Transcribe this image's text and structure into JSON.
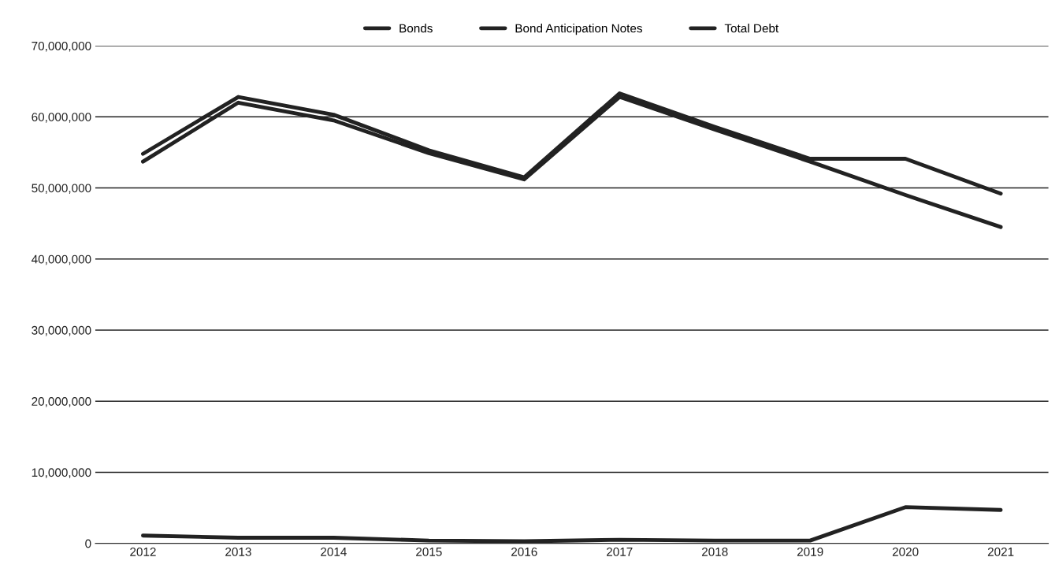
{
  "chart_data": {
    "type": "line",
    "categories": [
      "2012",
      "2013",
      "2014",
      "2015",
      "2016",
      "2017",
      "2018",
      "2019",
      "2020",
      "2021"
    ],
    "series": [
      {
        "name": "Bonds",
        "color": "#222222",
        "values": [
          53700000,
          62000000,
          59500000,
          54900000,
          51200000,
          62800000,
          58200000,
          53700000,
          49000000,
          44500000
        ]
      },
      {
        "name": "Bond Anticipation Notes",
        "color": "#222222",
        "values": [
          1100000,
          800000,
          800000,
          400000,
          300000,
          500000,
          400000,
          400000,
          5100000,
          4700000
        ]
      },
      {
        "name": "Total Debt",
        "color": "#222222",
        "values": [
          54800000,
          62800000,
          60300000,
          55300000,
          51500000,
          63300000,
          58600000,
          54100000,
          54100000,
          49200000
        ]
      }
    ],
    "ylim": [
      0,
      70000000
    ],
    "yticks": [
      {
        "value": 0,
        "label": "0"
      },
      {
        "value": 10000000,
        "label": "10,000,000"
      },
      {
        "value": 20000000,
        "label": "20,000,000"
      },
      {
        "value": 30000000,
        "label": "30,000,000"
      },
      {
        "value": 40000000,
        "label": "40,000,000"
      },
      {
        "value": 50000000,
        "label": "50,000,000"
      },
      {
        "value": 60000000,
        "label": "60,000,000"
      },
      {
        "value": 70000000,
        "label": "70,000,000"
      }
    ],
    "grid": "y",
    "legend": "top",
    "marker": "none",
    "line_style": "solid"
  }
}
